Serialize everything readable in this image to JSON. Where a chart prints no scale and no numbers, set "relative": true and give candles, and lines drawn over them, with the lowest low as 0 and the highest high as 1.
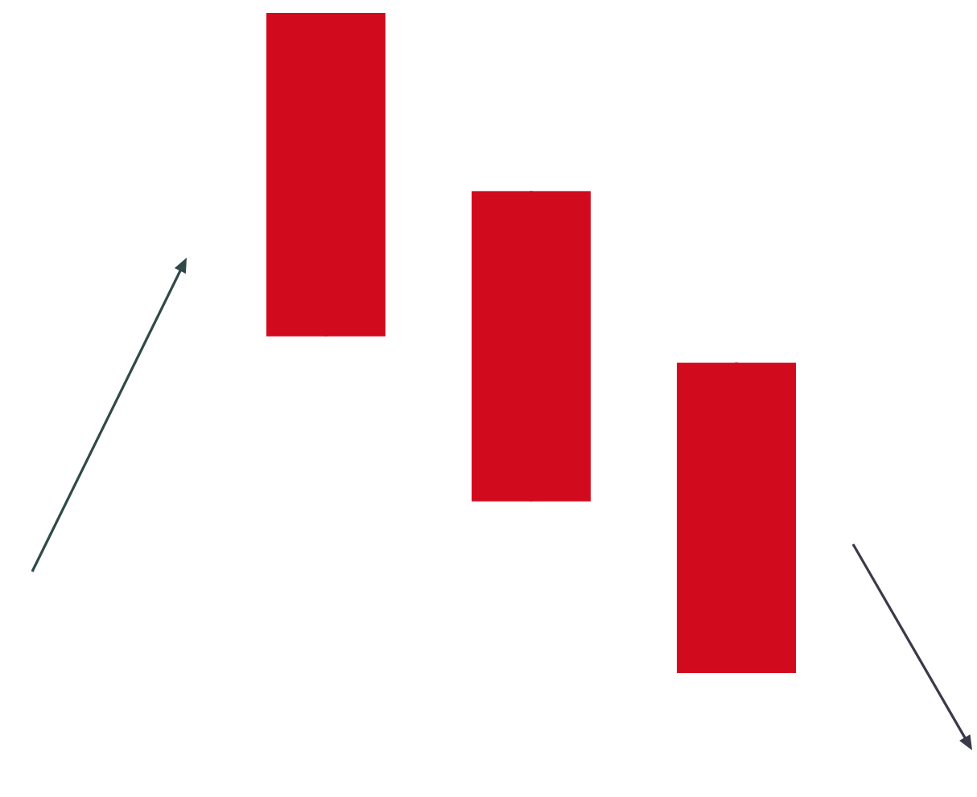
{
  "chart_data": {
    "type": "candlestick",
    "relative": true,
    "categories": [
      null,
      null,
      null
    ],
    "color": "#d10a1e",
    "ohlc": [
      [
        1,
        1,
        0.51,
        0.51
      ],
      [
        0.73,
        0.73,
        0.26,
        0.26
      ],
      [
        0.47,
        0.47,
        0,
        0
      ]
    ]
  }
}
